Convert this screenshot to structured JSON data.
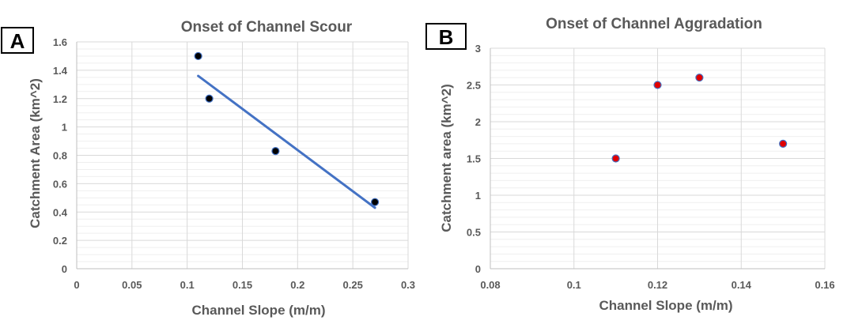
{
  "chart_data": [
    {
      "panel": "A",
      "type": "scatter",
      "title": "Onset of Channel Scour",
      "xlabel": "Channel Slope (m/m)",
      "ylabel": "Catchment Area (km^2)",
      "xlim": [
        0,
        0.3
      ],
      "ylim": [
        0,
        1.6
      ],
      "xticks": [
        0,
        0.05,
        0.1,
        0.15,
        0.2,
        0.25,
        0.3
      ],
      "xtick_labels": [
        "0",
        "0.05",
        "0.1",
        "0.15",
        "0.2",
        "0.25",
        "0.3"
      ],
      "yticks": [
        0,
        0.2,
        0.4,
        0.6,
        0.8,
        1,
        1.2,
        1.4,
        1.6
      ],
      "ytick_labels": [
        "0",
        "0.2",
        "0.4",
        "0.6",
        "0.8",
        "1",
        "1.2",
        "1.4",
        "1.6"
      ],
      "grid": true,
      "points": [
        {
          "x": 0.11,
          "y": 1.5
        },
        {
          "x": 0.12,
          "y": 1.2
        },
        {
          "x": 0.18,
          "y": 0.83
        },
        {
          "x": 0.27,
          "y": 0.47
        }
      ],
      "marker_fill": "#000000",
      "marker_edge": "#4472c4",
      "trendline": {
        "x": [
          0.11,
          0.27
        ],
        "y": [
          1.36,
          0.43
        ],
        "color": "#4472c4"
      }
    },
    {
      "panel": "B",
      "type": "scatter",
      "title": "Onset of Channel Aggradation",
      "xlabel": "Channel Slope (m/m)",
      "ylabel": "Catchment area (km^2)",
      "xlim": [
        0.08,
        0.16
      ],
      "ylim": [
        0,
        3
      ],
      "xticks": [
        0.08,
        0.1,
        0.12,
        0.14,
        0.16
      ],
      "xtick_labels": [
        "0.08",
        "0.1",
        "0.12",
        "0.14",
        "0.16"
      ],
      "yticks": [
        0,
        0.5,
        1,
        1.5,
        2,
        2.5,
        3
      ],
      "ytick_labels": [
        "0",
        "0.5",
        "1",
        "1.5",
        "2",
        "2.5",
        "3"
      ],
      "grid": true,
      "points": [
        {
          "x": 0.11,
          "y": 1.5
        },
        {
          "x": 0.12,
          "y": 2.5
        },
        {
          "x": 0.13,
          "y": 2.6
        },
        {
          "x": 0.15,
          "y": 1.7
        }
      ],
      "marker_fill": "#e00000",
      "marker_edge": "#4472c4"
    }
  ]
}
